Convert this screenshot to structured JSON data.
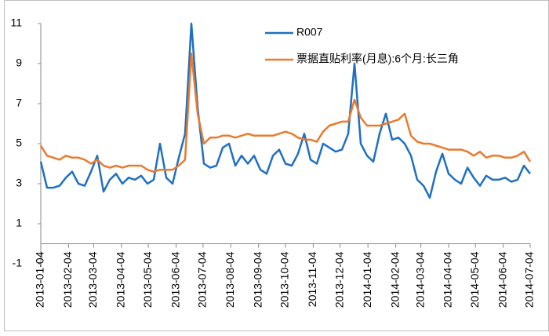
{
  "chart_data": {
    "type": "line",
    "x": [
      "2013-01-04",
      "2013-01-11",
      "2013-01-18",
      "2013-01-25",
      "2013-02-01",
      "2013-02-08",
      "2013-02-15",
      "2013-02-22",
      "2013-03-01",
      "2013-03-08",
      "2013-03-15",
      "2013-03-22",
      "2013-03-29",
      "2013-04-05",
      "2013-04-12",
      "2013-04-19",
      "2013-04-26",
      "2013-05-03",
      "2013-05-10",
      "2013-05-17",
      "2013-05-24",
      "2013-05-31",
      "2013-06-07",
      "2013-06-14",
      "2013-06-21",
      "2013-06-28",
      "2013-07-05",
      "2013-07-12",
      "2013-07-19",
      "2013-07-26",
      "2013-08-02",
      "2013-08-09",
      "2013-08-16",
      "2013-08-23",
      "2013-08-30",
      "2013-09-06",
      "2013-09-13",
      "2013-09-20",
      "2013-09-27",
      "2013-10-04",
      "2013-10-11",
      "2013-10-18",
      "2013-10-25",
      "2013-11-01",
      "2013-11-08",
      "2013-11-15",
      "2013-11-22",
      "2013-11-29",
      "2013-12-06",
      "2013-12-13",
      "2013-12-20",
      "2013-12-27",
      "2014-01-03",
      "2014-01-10",
      "2014-01-17",
      "2014-01-24",
      "2014-01-31",
      "2014-02-07",
      "2014-02-14",
      "2014-02-21",
      "2014-02-28",
      "2014-03-07",
      "2014-03-14",
      "2014-03-21",
      "2014-03-28",
      "2014-04-04",
      "2014-04-11",
      "2014-04-18",
      "2014-04-25",
      "2014-05-02",
      "2014-05-09",
      "2014-05-16",
      "2014-05-23",
      "2014-05-30",
      "2014-06-06",
      "2014-06-13",
      "2014-06-20",
      "2014-06-27",
      "2014-07-04"
    ],
    "series": [
      {
        "name": "R007",
        "color": "#1f70c1",
        "values": [
          4.1,
          2.8,
          2.8,
          2.9,
          3.3,
          3.6,
          3.0,
          2.9,
          3.6,
          4.4,
          2.6,
          3.2,
          3.5,
          3.0,
          3.3,
          3.2,
          3.4,
          3.0,
          3.2,
          5.0,
          3.3,
          3.0,
          4.3,
          5.5,
          11.0,
          6.8,
          4.0,
          3.8,
          3.9,
          4.8,
          5.0,
          3.9,
          4.4,
          4.0,
          4.4,
          3.7,
          3.5,
          4.4,
          4.7,
          4.0,
          3.9,
          4.5,
          5.5,
          4.2,
          4.0,
          5.0,
          4.8,
          4.6,
          4.7,
          5.5,
          9.0,
          5.0,
          4.4,
          4.1,
          5.5,
          6.5,
          5.2,
          5.3,
          5.0,
          4.4,
          3.2,
          2.9,
          2.3,
          3.6,
          4.5,
          3.5,
          3.2,
          3.0,
          3.8,
          3.3,
          2.9,
          3.4,
          3.2,
          3.2,
          3.3,
          3.1,
          3.2,
          3.9,
          3.5
        ]
      },
      {
        "name": "票据直贴利率(月息):6个月:长三角",
        "color": "#ea7a2e",
        "values": [
          4.9,
          4.4,
          4.3,
          4.2,
          4.4,
          4.3,
          4.3,
          4.2,
          4.0,
          4.2,
          3.9,
          3.8,
          3.9,
          3.8,
          3.9,
          3.9,
          3.9,
          3.7,
          3.6,
          3.7,
          3.7,
          3.7,
          3.9,
          4.2,
          9.5,
          6.5,
          5.0,
          5.3,
          5.3,
          5.4,
          5.4,
          5.3,
          5.4,
          5.5,
          5.4,
          5.4,
          5.4,
          5.4,
          5.5,
          5.6,
          5.5,
          5.3,
          5.2,
          5.2,
          5.1,
          5.6,
          5.9,
          6.0,
          6.1,
          6.1,
          7.2,
          6.3,
          5.9,
          5.9,
          5.9,
          6.0,
          6.1,
          6.2,
          6.5,
          5.4,
          5.1,
          5.0,
          5.0,
          4.9,
          4.8,
          4.7,
          4.7,
          4.7,
          4.6,
          4.4,
          4.6,
          4.3,
          4.4,
          4.4,
          4.3,
          4.3,
          4.4,
          4.6,
          4.1
        ]
      }
    ],
    "xticks": [
      "2013-01-04",
      "2013-02-04",
      "2013-03-04",
      "2013-04-04",
      "2013-05-04",
      "2013-06-04",
      "2013-07-04",
      "2013-08-04",
      "2013-09-04",
      "2013-10-04",
      "2013-11-04",
      "2013-12-04",
      "2014-01-04",
      "2014-02-04",
      "2014-03-04",
      "2014-04-04",
      "2014-05-04",
      "2014-06-04",
      "2014-07-04"
    ],
    "ylim": [
      -1,
      11
    ],
    "yticks": [
      -1,
      1,
      3,
      5,
      7,
      9,
      11
    ],
    "grid": false,
    "legend": "top-right"
  }
}
